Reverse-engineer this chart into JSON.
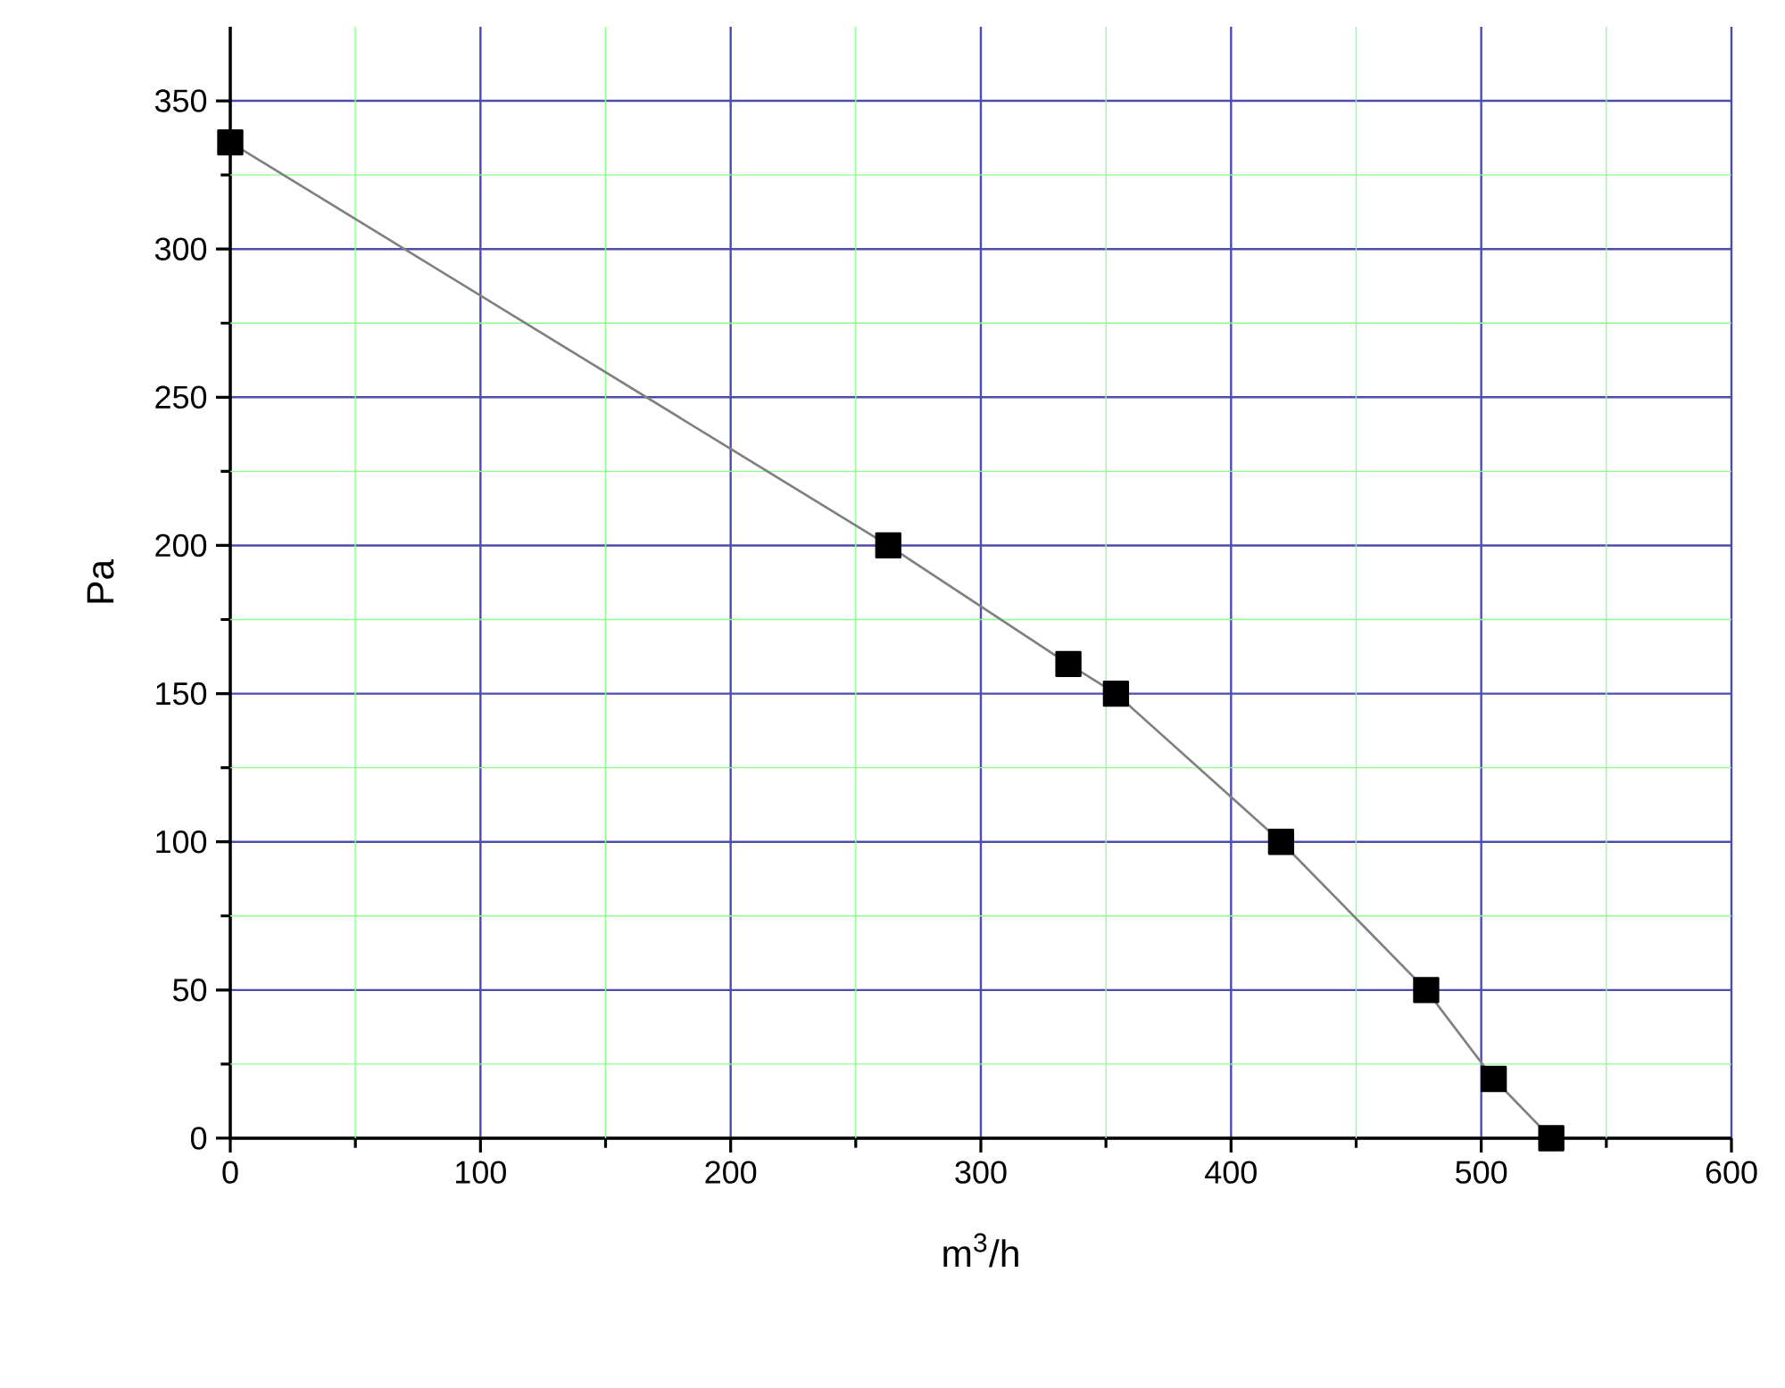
{
  "chart_data": {
    "type": "line",
    "xlabel": "m$^{3}$/h",
    "ylabel": "Pa",
    "x": [
      0,
      263,
      335,
      354,
      420,
      478,
      505,
      528
    ],
    "series": [
      {
        "color": "#000000",
        "values": [
          336,
          200,
          160,
          150,
          100,
          50,
          20,
          0
        ]
      }
    ],
    "xlim": [
      0,
      600
    ],
    "ylim": [
      0,
      375
    ],
    "xticks": [
      0,
      {
        "value": 50,
        "label": null
      },
      100,
      {
        "value": 150,
        "label": null
      },
      200,
      {
        "value": 250,
        "label": null
      },
      300,
      {
        "value": 350,
        "label": null
      },
      400,
      {
        "value": 450,
        "label": null
      },
      500,
      {
        "value": 550,
        "label": null
      },
      600
    ],
    "yticks": [
      0,
      {
        "value": 25,
        "label": null
      },
      50,
      {
        "value": 75,
        "label": null
      },
      100,
      {
        "value": 125,
        "label": null
      },
      150,
      {
        "value": 175,
        "label": null
      },
      200,
      {
        "value": 225,
        "label": null
      },
      250,
      {
        "value": 275,
        "label": null
      },
      300,
      {
        "value": 325,
        "label": null
      },
      350
    ],
    "grid": true,
    "marker": "square",
    "line_style": "solid"
  }
}
